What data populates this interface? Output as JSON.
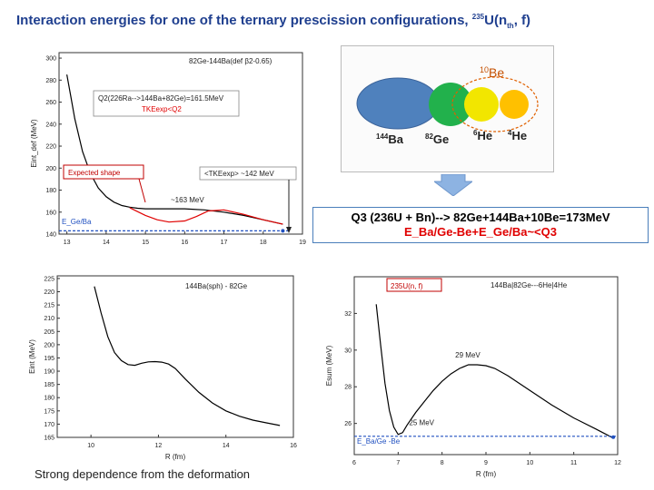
{
  "title": {
    "main": "Interaction energies for one of the ternary prescission configurations,",
    "sup": "235",
    "nucleus": "U(n",
    "sub": "th",
    "tail": ", f)"
  },
  "panel_a": {
    "annotation_top": "82Ge-144Ba(def β2-0.65)",
    "q2_box": "Q2(226Ra-->144Ba+82Ge)=161.5MeV",
    "tke_label": "TKEexp<Q2",
    "expected_shape": "Expected shape",
    "tke_avg": "<TKEexp> ~142 MeV",
    "min_label": "~163 MeV",
    "legend": "E_Ge/Ba"
  },
  "nuclei": {
    "be": "10Be",
    "ba": "144Ba",
    "ge": "82Ge",
    "he6": "6He",
    "he4": "4He",
    "colors": {
      "ba": "#4f81bd",
      "ge": "#22b14c",
      "he6": "#f2e600",
      "he4": "#ffc000"
    }
  },
  "q3_box": {
    "line1": "Q3 (236U + Bn)-->  82Ge+144Ba+10Be=173MeV",
    "line2": "E_Ba/Ge-Be+E_Ge/Ba~<Q3"
  },
  "panel_c": {
    "annotation": "144Ba(sph) - 82Ge"
  },
  "panel_d": {
    "annotation_box": "235U(n, f)",
    "annotation": "144Ba|82Ge---6He|4He",
    "max_label": "29 MeV",
    "min_label": "25 MeV",
    "legend": "E_Ba/Ge -Be"
  },
  "caption": "Strong dependence from the deformation",
  "chart_data": [
    {
      "type": "line",
      "id": "panel_a",
      "title": "82Ge-144Ba(def β2-0.65)",
      "xlabel": "R (fm)",
      "ylabel": "Eint_def (MeV)",
      "xlim": [
        12.8,
        19
      ],
      "ylim": [
        140,
        305
      ],
      "xticks": [
        13,
        14,
        15,
        16,
        17,
        18,
        19
      ],
      "yticks": [
        140,
        160,
        180,
        200,
        220,
        240,
        260,
        280,
        300
      ],
      "series": [
        {
          "name": "Eint_def",
          "color": "#000000",
          "x": [
            13.0,
            13.1,
            13.2,
            13.4,
            13.6,
            13.8,
            14.0,
            14.2,
            14.4,
            14.6,
            14.8,
            15.0,
            15.5,
            16.0,
            16.5,
            17.0,
            17.5,
            18.0,
            18.5
          ],
          "y": [
            285,
            265,
            245,
            215,
            195,
            182,
            174,
            169,
            166,
            164.5,
            163.5,
            163,
            163,
            163,
            162,
            160,
            157,
            153,
            149
          ]
        },
        {
          "name": "Expected shape",
          "color": "#e00000",
          "x": [
            14.6,
            15.0,
            15.3,
            15.6,
            16.0,
            16.3,
            16.6,
            17.0,
            17.5,
            18.0,
            18.5
          ],
          "y": [
            164,
            157,
            153,
            151,
            152,
            156,
            161,
            162,
            158,
            153,
            149
          ]
        },
        {
          "name": "E_Ge/Ba",
          "color": "#2050c0",
          "dashed": true,
          "x": [
            12.8,
            18.7
          ],
          "y": [
            143,
            143
          ]
        }
      ]
    },
    {
      "type": "line",
      "id": "panel_c",
      "title": "144Ba(sph) - 82Ge",
      "xlabel": "R (fm)",
      "ylabel": "Eint (MeV)",
      "xlim": [
        9,
        16
      ],
      "ylim": [
        165,
        226
      ],
      "xticks": [
        10,
        12,
        14,
        16
      ],
      "yticks": [
        165,
        170,
        175,
        180,
        185,
        190,
        195,
        200,
        205,
        210,
        215,
        220,
        225
      ],
      "series": [
        {
          "name": "Eint",
          "color": "#000000",
          "x": [
            10.1,
            10.3,
            10.5,
            10.7,
            10.9,
            11.1,
            11.3,
            11.5,
            11.7,
            11.9,
            12.1,
            12.3,
            12.5,
            12.8,
            13.2,
            13.6,
            14.0,
            14.4,
            14.8,
            15.2,
            15.6
          ],
          "y": [
            222,
            212,
            203,
            197,
            194,
            192.5,
            192.2,
            193,
            193.5,
            193.6,
            193.4,
            192.7,
            191,
            187,
            182,
            178,
            175,
            173,
            171.5,
            170.5,
            169.5
          ]
        }
      ]
    },
    {
      "type": "line",
      "id": "panel_d",
      "title": "144Ba|82Ge---6He|4He",
      "xlabel": "R (fm)",
      "ylabel": "Esum (MeV)",
      "xlim": [
        6,
        12
      ],
      "ylim": [
        24.3,
        34
      ],
      "xticks": [
        6,
        7,
        8,
        9,
        10,
        11,
        12
      ],
      "yticks": [
        26,
        28,
        30,
        32
      ],
      "series": [
        {
          "name": "Esum",
          "color": "#000000",
          "x": [
            6.5,
            6.6,
            6.7,
            6.8,
            6.9,
            7.0,
            7.1,
            7.2,
            7.4,
            7.6,
            7.8,
            8.0,
            8.2,
            8.4,
            8.6,
            8.8,
            9.0,
            9.2,
            9.5,
            10.0,
            10.5,
            11.0,
            11.5,
            11.9
          ],
          "y": [
            32.5,
            30.3,
            28.2,
            26.7,
            25.8,
            25.4,
            25.5,
            25.9,
            26.6,
            27.2,
            27.8,
            28.3,
            28.7,
            29.0,
            29.2,
            29.2,
            29.15,
            29.0,
            28.6,
            27.8,
            27.0,
            26.3,
            25.7,
            25.2
          ]
        },
        {
          "name": "E_Ba/Ge -Be",
          "color": "#2050c0",
          "dashed": true,
          "x": [
            6.0,
            12.0
          ],
          "y": [
            25.3,
            25.3
          ]
        }
      ]
    }
  ]
}
